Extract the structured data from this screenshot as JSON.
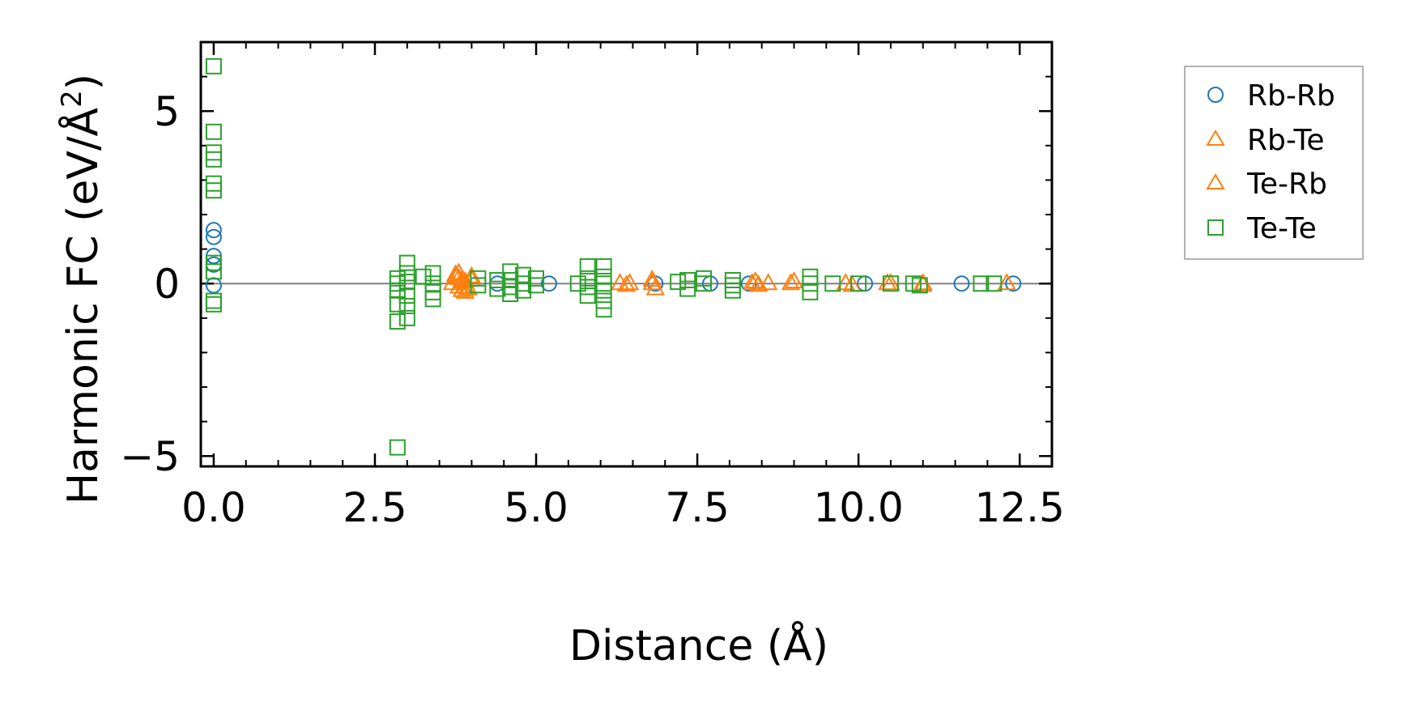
{
  "chart_data": {
    "type": "scatter",
    "xlabel": "Distance (Å)",
    "ylabel_main": "Harmonic FC (eV/Å",
    "ylabel_sup": "2",
    "ylabel_close": ")",
    "xlim": [
      -0.2,
      13.0
    ],
    "ylim": [
      -5.3,
      7.0
    ],
    "xticks": [
      {
        "v": 0.0,
        "label": "0.0"
      },
      {
        "v": 2.5,
        "label": "2.5"
      },
      {
        "v": 5.0,
        "label": "5.0"
      },
      {
        "v": 7.5,
        "label": "7.5"
      },
      {
        "v": 10.0,
        "label": "10.0"
      },
      {
        "v": 12.5,
        "label": "12.5"
      }
    ],
    "yticks": [
      {
        "v": -5,
        "label": "−5"
      },
      {
        "v": 0,
        "label": "0"
      },
      {
        "v": 5,
        "label": "5"
      }
    ],
    "x_minor_step": 0.5,
    "y_minor_step": 1.0,
    "zero_line": true,
    "grid": false,
    "legend_position": "outside-right-top",
    "series": [
      {
        "name": "Rb-Rb",
        "marker": "circle",
        "color": "#1f77b4",
        "points": [
          [
            0,
            1.55
          ],
          [
            0,
            1.35
          ],
          [
            0,
            0.8
          ],
          [
            0,
            0.55
          ],
          [
            0,
            -0.05
          ],
          [
            4.4,
            0.0
          ],
          [
            5.2,
            0.0
          ],
          [
            6.85,
            0.0
          ],
          [
            7.7,
            0.0
          ],
          [
            8.3,
            0.0
          ],
          [
            10.1,
            0.0
          ],
          [
            11.6,
            0.0
          ],
          [
            12.4,
            0.0
          ]
        ]
      },
      {
        "name": "Rb-Te",
        "marker": "triangle",
        "color": "#ff7f0e",
        "points": [
          [
            3.75,
            0.25
          ],
          [
            3.8,
            0.15
          ],
          [
            3.85,
            0.1
          ],
          [
            3.9,
            0.05
          ],
          [
            3.7,
            0.0
          ],
          [
            3.8,
            -0.1
          ],
          [
            3.85,
            -0.2
          ],
          [
            3.9,
            -0.25
          ],
          [
            3.95,
            -0.15
          ],
          [
            4.0,
            0.2
          ],
          [
            6.3,
            0.0
          ],
          [
            6.4,
            -0.05
          ],
          [
            6.8,
            0.0
          ],
          [
            6.85,
            -0.15
          ],
          [
            8.35,
            0.0
          ],
          [
            8.45,
            -0.05
          ],
          [
            8.95,
            0.0
          ],
          [
            9.8,
            0.0
          ],
          [
            9.9,
            -0.05
          ],
          [
            10.5,
            0.0
          ],
          [
            11.0,
            0.0
          ],
          [
            12.3,
            0.0
          ]
        ]
      },
      {
        "name": "Te-Rb",
        "marker": "triangle",
        "color": "#ff7f0e",
        "points": [
          [
            3.75,
            0.2
          ],
          [
            3.8,
            0.3
          ],
          [
            3.85,
            0.05
          ],
          [
            3.9,
            -0.1
          ],
          [
            4.0,
            0.1
          ],
          [
            6.45,
            0.0
          ],
          [
            6.8,
            0.1
          ],
          [
            8.4,
            0.05
          ],
          [
            8.6,
            0.0
          ],
          [
            9.0,
            0.05
          ],
          [
            10.45,
            0.0
          ],
          [
            11.0,
            -0.05
          ]
        ]
      },
      {
        "name": "Te-Te",
        "marker": "square",
        "color": "#2ca02c",
        "points": [
          [
            0,
            6.3
          ],
          [
            0,
            4.4
          ],
          [
            0,
            3.8
          ],
          [
            0,
            3.6
          ],
          [
            0,
            2.9
          ],
          [
            0,
            2.7
          ],
          [
            0,
            0.6
          ],
          [
            0,
            0.35
          ],
          [
            0,
            -0.5
          ],
          [
            0,
            -0.6
          ],
          [
            2.85,
            0.15
          ],
          [
            2.85,
            0.0
          ],
          [
            2.85,
            -0.2
          ],
          [
            2.85,
            -0.6
          ],
          [
            2.85,
            -1.1
          ],
          [
            2.85,
            -4.75
          ],
          [
            3.0,
            0.6
          ],
          [
            3.0,
            0.3
          ],
          [
            3.0,
            0.05
          ],
          [
            3.0,
            -0.35
          ],
          [
            3.0,
            -0.65
          ],
          [
            3.0,
            -1.0
          ],
          [
            3.25,
            0.2
          ],
          [
            3.4,
            0.3
          ],
          [
            3.4,
            0.0
          ],
          [
            3.4,
            -0.25
          ],
          [
            3.4,
            -0.45
          ],
          [
            4.1,
            0.15
          ],
          [
            4.1,
            -0.05
          ],
          [
            4.4,
            0.1
          ],
          [
            4.4,
            -0.15
          ],
          [
            4.6,
            0.35
          ],
          [
            4.6,
            0.1
          ],
          [
            4.6,
            -0.1
          ],
          [
            4.6,
            -0.3
          ],
          [
            4.8,
            0.25
          ],
          [
            4.8,
            0.0
          ],
          [
            4.8,
            -0.2
          ],
          [
            5.0,
            0.15
          ],
          [
            5.0,
            -0.05
          ],
          [
            5.65,
            0.0
          ],
          [
            5.8,
            0.5
          ],
          [
            5.8,
            0.15
          ],
          [
            5.8,
            -0.1
          ],
          [
            5.8,
            -0.35
          ],
          [
            6.05,
            0.5
          ],
          [
            6.05,
            0.2
          ],
          [
            6.05,
            0.0
          ],
          [
            6.05,
            -0.2
          ],
          [
            6.05,
            -0.5
          ],
          [
            6.05,
            -0.75
          ],
          [
            7.2,
            0.05
          ],
          [
            7.35,
            0.1
          ],
          [
            7.35,
            -0.15
          ],
          [
            7.6,
            0.15
          ],
          [
            7.6,
            0.0
          ],
          [
            8.05,
            0.1
          ],
          [
            8.05,
            -0.05
          ],
          [
            8.05,
            -0.2
          ],
          [
            9.25,
            0.2
          ],
          [
            9.25,
            0.0
          ],
          [
            9.25,
            -0.25
          ],
          [
            9.6,
            0.0
          ],
          [
            10.0,
            0.0
          ],
          [
            10.5,
            0.0
          ],
          [
            10.85,
            0.0
          ],
          [
            10.95,
            -0.05
          ],
          [
            11.9,
            0.0
          ],
          [
            12.1,
            0.0
          ]
        ]
      }
    ]
  }
}
